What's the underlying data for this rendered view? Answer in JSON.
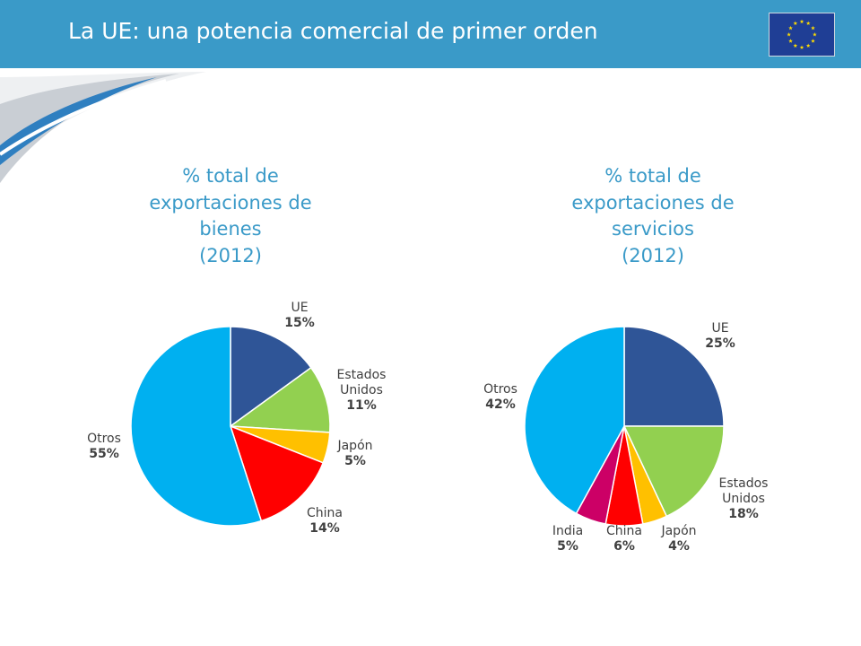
{
  "header": {
    "title": "La UE: una potencia comercial de primer orden",
    "flag_icon": "eu-flag-icon",
    "bar_color": "#3a9ac8"
  },
  "chart_data": [
    {
      "type": "pie",
      "title_lines": [
        "% total de",
        "exportaciones de",
        "bienes",
        "(2012)"
      ],
      "slices": [
        {
          "name": "UE",
          "label_lines": [
            "UE"
          ],
          "value": 15,
          "value_label": "15%",
          "color": "#2f5597"
        },
        {
          "name": "Estados Unidos",
          "label_lines": [
            "Estados",
            "Unidos"
          ],
          "value": 11,
          "value_label": "11%",
          "color": "#92d050"
        },
        {
          "name": "Japón",
          "label_lines": [
            "Japón"
          ],
          "value": 5,
          "value_label": "5%",
          "color": "#ffc000"
        },
        {
          "name": "China",
          "label_lines": [
            "China"
          ],
          "value": 14,
          "value_label": "14%",
          "color": "#ff0000"
        },
        {
          "name": "Otros",
          "label_lines": [
            "Otros"
          ],
          "value": 55,
          "value_label": "55%",
          "color": "#00b0f0"
        }
      ]
    },
    {
      "type": "pie",
      "title_lines": [
        "% total de",
        "exportaciones de",
        "servicios",
        "(2012)"
      ],
      "slices": [
        {
          "name": "UE",
          "label_lines": [
            "UE"
          ],
          "value": 25,
          "value_label": "25%",
          "color": "#2f5597"
        },
        {
          "name": "Estados Unidos",
          "label_lines": [
            "Estados",
            "Unidos"
          ],
          "value": 18,
          "value_label": "18%",
          "color": "#92d050"
        },
        {
          "name": "Japón",
          "label_lines": [
            "Japón"
          ],
          "value": 4,
          "value_label": "4%",
          "color": "#ffc000"
        },
        {
          "name": "China",
          "label_lines": [
            "China"
          ],
          "value": 6,
          "value_label": "6%",
          "color": "#ff0000"
        },
        {
          "name": "India",
          "label_lines": [
            "India"
          ],
          "value": 5,
          "value_label": "5%",
          "color": "#cc0066"
        },
        {
          "name": "Otros",
          "label_lines": [
            "Otros"
          ],
          "value": 42,
          "value_label": "42%",
          "color": "#00b0f0"
        }
      ]
    }
  ]
}
